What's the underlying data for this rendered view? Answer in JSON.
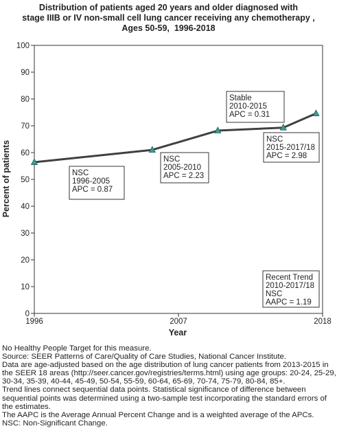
{
  "title_lines": [
    "Distribution of patients aged 20 years and older diagnosed with",
    "stage IIIB or IV non-small cell lung cancer receiving any chemotherapy ,",
    "Ages 50-59,  1996-2018"
  ],
  "chart_data": {
    "type": "line",
    "xlabel": "Year",
    "ylabel": "Percent of patients",
    "xlim": [
      1996,
      2018
    ],
    "ylim": [
      0,
      100
    ],
    "x_ticks": [
      1996,
      2007,
      2018
    ],
    "y_ticks": [
      0,
      10,
      20,
      30,
      40,
      50,
      60,
      70,
      80,
      90,
      100
    ],
    "grid": false,
    "series": [
      {
        "x": [
          1996,
          2005,
          2010,
          2015,
          2017.5
        ],
        "y": [
          56.4,
          61.0,
          68.2,
          69.3,
          74.6
        ]
      }
    ],
    "annotations": [
      {
        "lines": [
          "NSC",
          "1996-2005",
          "APC =  0.87"
        ]
      },
      {
        "lines": [
          "NSC",
          "2005-2010",
          "APC =  2.23"
        ]
      },
      {
        "lines": [
          "Stable",
          "2010-2015",
          "APC =  0.31"
        ]
      },
      {
        "lines": [
          "NSC",
          "2015-2017/18",
          "APC =  2.98"
        ]
      },
      {
        "lines": [
          "Recent Trend",
          "2010-2017/18",
          "NSC",
          "AAPC =  1.19"
        ]
      }
    ],
    "colors": {
      "line": "#404040",
      "marker": "#3a9e94",
      "axis": "#333333"
    }
  },
  "notes": [
    "No Healthy People Target for this measure.",
    "Source: SEER Patterns of Care/Quality of Care Studies, National Cancer Institute.",
    "Data are age-adjusted based on the age distribution of lung cancer patients from 2013-2015 in the SEER 18 areas (http://seer.cancer.gov/registries/terms.html) using age groups: 20-24, 25-29, 30-34, 35-39, 40-44, 45-49, 50-54, 55-59, 60-64, 65-69, 70-74, 75-79, 80-84, 85+.",
    "Trend lines connect sequential data points. Statistical significance of difference between sequential points was determined using a two-sample test incorporating the standard errors of the estimates.",
    "The AAPC is the Average Annual Percent Change and is a weighted average of the APCs.",
    "NSC: Non-Significant Change."
  ]
}
